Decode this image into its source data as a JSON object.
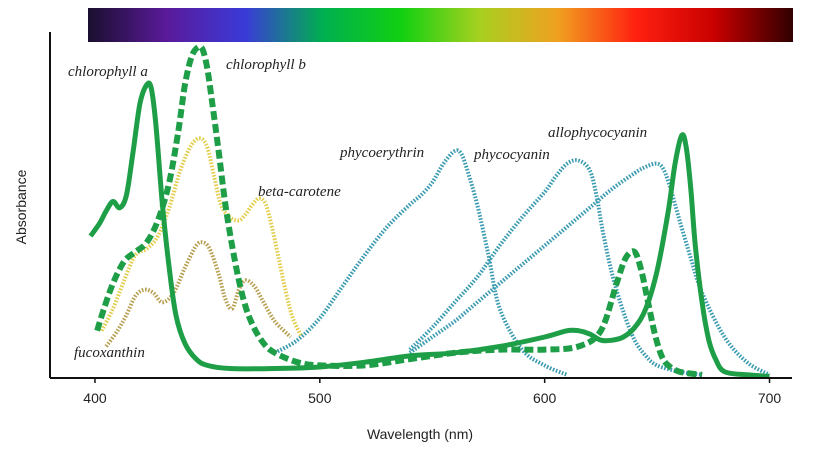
{
  "chart_data": {
    "type": "line",
    "xlabel": "Wavelength  (nm)",
    "ylabel": "Absorbance",
    "xlim": [
      380,
      710
    ],
    "ylim": [
      0,
      1.05
    ],
    "xticks": [
      400,
      500,
      600,
      700
    ],
    "spectrum_bar": [
      "#1a0f2e",
      "#5a1a9a",
      "#3a3ad8",
      "#00b050",
      "#11d011",
      "#a8d020",
      "#f0a020",
      "#ff2010",
      "#c80000",
      "#300000"
    ],
    "series": [
      {
        "name": "chlorophyll a",
        "color": "#1e9e47",
        "style": "solid",
        "x": [
          398,
          402,
          405,
          408,
          411,
          414,
          417,
          420,
          423,
          425,
          427,
          430,
          433,
          436,
          440,
          445,
          450,
          460,
          480,
          500,
          520,
          540,
          560,
          580,
          600,
          610,
          615,
          620,
          625,
          630,
          635,
          640,
          645,
          650,
          655,
          658,
          661,
          663,
          665,
          667,
          670,
          673,
          676,
          680,
          690,
          700
        ],
        "y": [
          0.45,
          0.49,
          0.53,
          0.56,
          0.54,
          0.58,
          0.72,
          0.87,
          0.93,
          0.92,
          0.81,
          0.55,
          0.35,
          0.2,
          0.11,
          0.06,
          0.04,
          0.03,
          0.03,
          0.035,
          0.05,
          0.07,
          0.08,
          0.1,
          0.13,
          0.15,
          0.15,
          0.14,
          0.12,
          0.12,
          0.13,
          0.16,
          0.22,
          0.34,
          0.53,
          0.68,
          0.77,
          0.73,
          0.6,
          0.42,
          0.24,
          0.12,
          0.06,
          0.02,
          0.01,
          0.005
        ]
      },
      {
        "name": "chlorophyll b",
        "color": "#1e9e47",
        "style": "dashed",
        "x": [
          401,
          404,
          408,
          413,
          418,
          423,
          428,
          433,
          437,
          440,
          443,
          446,
          448,
          450,
          452,
          455,
          458,
          462,
          466,
          470,
          475,
          480,
          490,
          500,
          520,
          540,
          560,
          580,
          600,
          615,
          625,
          632,
          636,
          640,
          643,
          646,
          649,
          652,
          655,
          660,
          670
        ],
        "y": [
          0.15,
          0.22,
          0.3,
          0.37,
          0.4,
          0.43,
          0.5,
          0.62,
          0.78,
          0.93,
          1.02,
          1.05,
          1.04,
          0.98,
          0.88,
          0.72,
          0.55,
          0.38,
          0.25,
          0.17,
          0.11,
          0.08,
          0.05,
          0.04,
          0.04,
          0.06,
          0.08,
          0.09,
          0.09,
          0.1,
          0.15,
          0.3,
          0.38,
          0.4,
          0.34,
          0.24,
          0.14,
          0.07,
          0.04,
          0.02,
          0.01
        ]
      },
      {
        "name": "beta-carotene",
        "color": "#e3cd4a",
        "style": "dotted",
        "x": [
          403,
          408,
          413,
          418,
          423,
          428,
          433,
          438,
          443,
          447,
          450,
          453,
          456,
          460,
          464,
          467,
          470,
          473,
          476,
          479,
          482,
          485,
          488,
          492
        ],
        "y": [
          0.15,
          0.22,
          0.31,
          0.39,
          0.41,
          0.45,
          0.54,
          0.66,
          0.74,
          0.76,
          0.73,
          0.64,
          0.55,
          0.51,
          0.5,
          0.52,
          0.55,
          0.57,
          0.55,
          0.47,
          0.37,
          0.27,
          0.19,
          0.13
        ]
      },
      {
        "name": "fucoxanthin",
        "color": "#b8a052",
        "style": "dotted",
        "x": [
          405,
          410,
          414,
          418,
          422,
          426,
          430,
          435,
          440,
          445,
          448,
          451,
          455,
          458,
          461,
          464,
          467,
          471,
          475,
          480,
          487
        ],
        "y": [
          0.1,
          0.15,
          0.2,
          0.26,
          0.28,
          0.27,
          0.24,
          0.27,
          0.35,
          0.42,
          0.43,
          0.41,
          0.33,
          0.25,
          0.22,
          0.28,
          0.31,
          0.29,
          0.24,
          0.18,
          0.13
        ]
      },
      {
        "name": "phycoerythrin",
        "color": "#3a9bb0",
        "style": "dotted",
        "x": [
          480,
          490,
          500,
          510,
          520,
          530,
          540,
          545,
          550,
          555,
          560,
          563,
          566,
          570,
          575,
          580,
          590,
          600,
          610
        ],
        "y": [
          0.08,
          0.12,
          0.19,
          0.29,
          0.39,
          0.48,
          0.55,
          0.58,
          0.62,
          0.68,
          0.72,
          0.71,
          0.65,
          0.55,
          0.39,
          0.22,
          0.09,
          0.04,
          0.01
        ]
      },
      {
        "name": "phycocyanin",
        "color": "#3a9bb0",
        "style": "dotted",
        "x": [
          540,
          550,
          560,
          570,
          580,
          590,
          600,
          605,
          610,
          615,
          620,
          623,
          626,
          630,
          635,
          640,
          645,
          650,
          660,
          670
        ],
        "y": [
          0.09,
          0.16,
          0.24,
          0.32,
          0.42,
          0.51,
          0.59,
          0.64,
          0.68,
          0.69,
          0.66,
          0.58,
          0.46,
          0.33,
          0.21,
          0.12,
          0.07,
          0.04,
          0.02,
          0.01
        ]
      },
      {
        "name": "allophycocyanin",
        "color": "#3a9bb0",
        "style": "dotted",
        "x": [
          540,
          550,
          560,
          570,
          580,
          590,
          600,
          610,
          620,
          630,
          640,
          645,
          650,
          653,
          656,
          660,
          665,
          670,
          680,
          690,
          700
        ],
        "y": [
          0.08,
          0.13,
          0.18,
          0.24,
          0.3,
          0.36,
          0.42,
          0.48,
          0.54,
          0.6,
          0.65,
          0.67,
          0.68,
          0.66,
          0.6,
          0.5,
          0.38,
          0.27,
          0.13,
          0.05,
          0.01
        ]
      }
    ]
  }
}
